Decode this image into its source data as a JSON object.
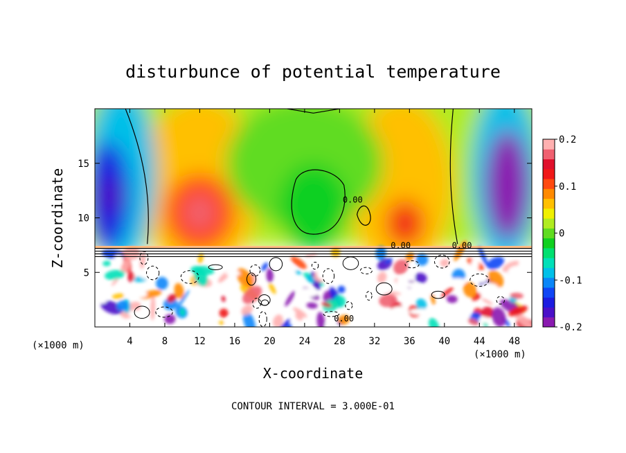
{
  "chart_data": {
    "type": "heatmap",
    "title": "disturbunce of potential temperature",
    "xlabel": "X-coordinate",
    "ylabel": "Z-coordinate",
    "x_unit": "(×1000 m)",
    "y_unit": "(×1000 m)",
    "footer": "CONTOUR INTERVAL = 3.000E-01",
    "xlim": [
      0,
      50
    ],
    "ylim": [
      0,
      20
    ],
    "x_ticks": [
      4,
      8,
      12,
      16,
      20,
      24,
      28,
      32,
      36,
      40,
      44,
      48
    ],
    "y_ticks": [
      5,
      10,
      15
    ],
    "colorbar": {
      "range": [
        -0.2,
        0.2
      ],
      "ticks": [
        {
          "value": 0.2,
          "label": "0.2"
        },
        {
          "value": 0.1,
          "label": "0.1"
        },
        {
          "value": 0,
          "label": "0"
        },
        {
          "value": -0.1,
          "label": "-0.1"
        },
        {
          "value": -0.2,
          "label": "-0.2"
        }
      ],
      "colors": [
        "#8a1ab0",
        "#4a10c8",
        "#1c1ce0",
        "#1046f5",
        "#0a86f8",
        "#00c0e8",
        "#00e0b8",
        "#00e070",
        "#10d020",
        "#60dc20",
        "#b0ec20",
        "#f0f000",
        "#ffc000",
        "#ff8a00",
        "#ff4a10",
        "#f01818",
        "#e0102c",
        "#f06070",
        "#ffb0b0"
      ]
    },
    "contour_labels": [
      {
        "x": 29.5,
        "y": 11.4,
        "text": "0.00"
      },
      {
        "x": 35.0,
        "y": 7.2,
        "text": "0.00"
      },
      {
        "x": 42.0,
        "y": 7.2,
        "text": "0.00"
      },
      {
        "x": 28.5,
        "y": 0.5,
        "text": "0.00"
      }
    ],
    "field_features": {
      "upper_layer_z_range": [
        7.3,
        20
      ],
      "interface_height": 7.3,
      "warm_anomalies": [
        {
          "x": 12,
          "z": 10.5,
          "value": 0.16
        },
        {
          "x": 35.5,
          "z": 9.5,
          "value": 0.12
        }
      ],
      "cold_anomalies": [
        {
          "x": 2,
          "z": 12,
          "value": -0.17
        },
        {
          "x": 47,
          "z": 13,
          "value": -0.2
        }
      ],
      "neutral_core": {
        "x": 25,
        "z": 11,
        "value": -0.03
      },
      "lower_layer": "turbulent mixed field with saturated extremes"
    }
  }
}
